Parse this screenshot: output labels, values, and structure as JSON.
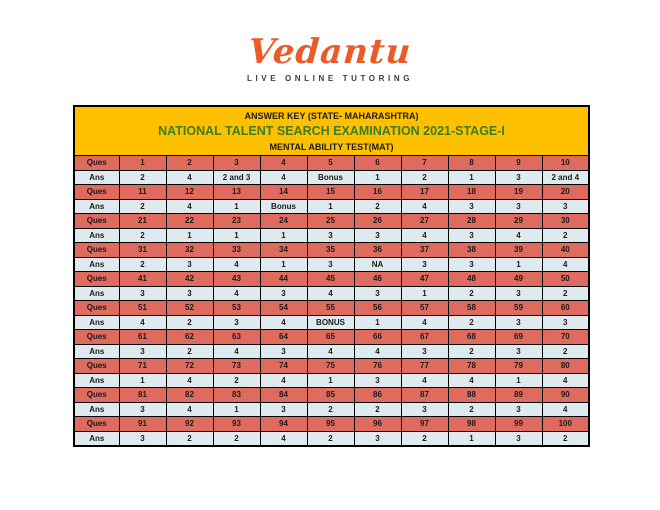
{
  "colors": {
    "brand_orange": "#EB5B28",
    "tagline_gray": "#3D3D3D",
    "header_yellow": "#FFC000",
    "exam_green": "#3B7D23",
    "ques_red": "#DF6B5F",
    "ans_blue": "#DEEAED",
    "border_black": "#000000"
  },
  "logo": {
    "brand": "Vedantu",
    "tagline": "LIVE ONLINE TUTORING"
  },
  "header": {
    "line1": "ANSWER KEY (STATE- MAHARASHTRA)",
    "line2": "NATIONAL TALENT SEARCH EXAMINATION 2021-STAGE-I",
    "line3": "MENTAL ABILITY TEST(MAT)"
  },
  "table": {
    "rows": [
      {
        "type": "ques",
        "label": "Ques",
        "cells": [
          "1",
          "2",
          "3",
          "4",
          "5",
          "6",
          "7",
          "8",
          "9",
          "10"
        ]
      },
      {
        "type": "ans",
        "label": "Ans",
        "cells": [
          "2",
          "4",
          "2 and 3",
          "4",
          "Bonus",
          "1",
          "2",
          "1",
          "3",
          "2 and 4"
        ]
      },
      {
        "type": "ques",
        "label": "Ques",
        "cells": [
          "11",
          "12",
          "13",
          "14",
          "15",
          "16",
          "17",
          "18",
          "19",
          "20"
        ]
      },
      {
        "type": "ans",
        "label": "Ans",
        "cells": [
          "2",
          "4",
          "1",
          "Bonus",
          "1",
          "2",
          "4",
          "3",
          "3",
          "3"
        ]
      },
      {
        "type": "ques",
        "label": "Ques",
        "cells": [
          "21",
          "22",
          "23",
          "24",
          "25",
          "26",
          "27",
          "28",
          "29",
          "30"
        ]
      },
      {
        "type": "ans",
        "label": "Ans",
        "cells": [
          "2",
          "1",
          "1",
          "1",
          "3",
          "3",
          "4",
          "3",
          "4",
          "2"
        ]
      },
      {
        "type": "ques",
        "label": "Ques",
        "cells": [
          "31",
          "32",
          "33",
          "34",
          "35",
          "36",
          "37",
          "38",
          "39",
          "40"
        ]
      },
      {
        "type": "ans",
        "label": "Ans",
        "cells": [
          "2",
          "3",
          "4",
          "1",
          "3",
          "NA",
          "3",
          "3",
          "1",
          "4"
        ]
      },
      {
        "type": "ques",
        "label": "Ques",
        "cells": [
          "41",
          "42",
          "43",
          "44",
          "45",
          "46",
          "47",
          "48",
          "49",
          "50"
        ]
      },
      {
        "type": "ans",
        "label": "Ans",
        "cells": [
          "3",
          "3",
          "4",
          "3",
          "4",
          "3",
          "1",
          "2",
          "3",
          "2"
        ]
      },
      {
        "type": "ques",
        "label": "Ques",
        "cells": [
          "51",
          "52",
          "53",
          "54",
          "55",
          "56",
          "57",
          "58",
          "59",
          "60"
        ]
      },
      {
        "type": "ans",
        "label": "Ans",
        "cells": [
          "4",
          "2",
          "3",
          "4",
          "BONUS",
          "1",
          "4",
          "2",
          "3",
          "3"
        ]
      },
      {
        "type": "ques",
        "label": "Ques",
        "cells": [
          "61",
          "62",
          "63",
          "64",
          "65",
          "66",
          "67",
          "68",
          "69",
          "70"
        ]
      },
      {
        "type": "ans",
        "label": "Ans",
        "cells": [
          "3",
          "2",
          "4",
          "3",
          "4",
          "4",
          "3",
          "2",
          "3",
          "2"
        ]
      },
      {
        "type": "ques",
        "label": "Ques",
        "cells": [
          "71",
          "72",
          "73",
          "74",
          "75",
          "76",
          "77",
          "78",
          "79",
          "80"
        ]
      },
      {
        "type": "ans",
        "label": "Ans",
        "cells": [
          "1",
          "4",
          "2",
          "4",
          "1",
          "3",
          "4",
          "4",
          "1",
          "4"
        ]
      },
      {
        "type": "ques",
        "label": "Ques",
        "cells": [
          "81",
          "82",
          "83",
          "84",
          "85",
          "86",
          "87",
          "88",
          "89",
          "90"
        ]
      },
      {
        "type": "ans",
        "label": "Ans",
        "cells": [
          "3",
          "4",
          "1",
          "3",
          "2",
          "2",
          "3",
          "2",
          "3",
          "4"
        ]
      },
      {
        "type": "ques",
        "label": "Ques",
        "cells": [
          "91",
          "92",
          "93",
          "94",
          "95",
          "96",
          "97",
          "98",
          "99",
          "100"
        ]
      },
      {
        "type": "ans",
        "label": "Ans",
        "cells": [
          "3",
          "2",
          "2",
          "4",
          "2",
          "3",
          "2",
          "1",
          "3",
          "2"
        ]
      }
    ]
  }
}
